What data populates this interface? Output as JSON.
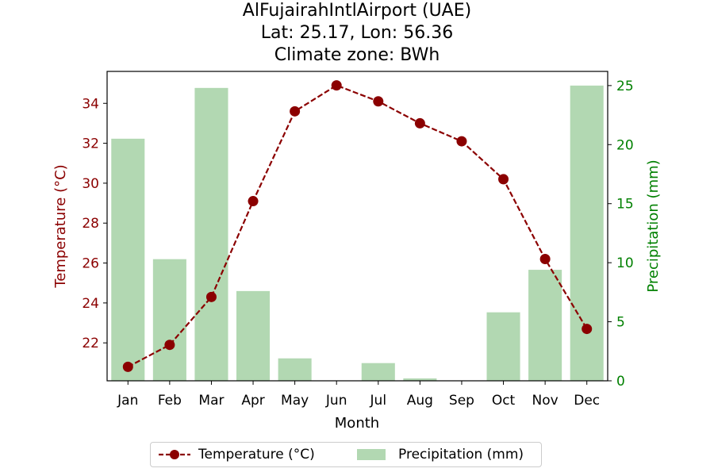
{
  "chart_data": {
    "type": "bar+line",
    "title_lines": [
      "AlFujairahIntlAirport (UAE)",
      "Lat: 25.17, Lon: 56.36",
      "Climate zone: BWh"
    ],
    "xlabel": "Month",
    "categories": [
      "Jan",
      "Feb",
      "Mar",
      "Apr",
      "May",
      "Jun",
      "Jul",
      "Aug",
      "Sep",
      "Oct",
      "Nov",
      "Dec"
    ],
    "left_axis": {
      "label": "Temperature (°C)",
      "ylim": [
        20.1,
        35.6
      ],
      "ticks": [
        22,
        24,
        26,
        28,
        30,
        32,
        34
      ],
      "color": "#8b0000"
    },
    "right_axis": {
      "label": "Precipitation (mm)",
      "ylim": [
        0,
        26.2
      ],
      "ticks": [
        0,
        5,
        10,
        15,
        20,
        25
      ],
      "color": "#008000"
    },
    "series": [
      {
        "name": "Temperature (°C)",
        "kind": "line",
        "axis": "left",
        "color": "#8b0000",
        "values": [
          20.8,
          21.9,
          24.3,
          29.1,
          33.6,
          34.9,
          34.1,
          33.0,
          32.1,
          30.2,
          26.2,
          22.7
        ]
      },
      {
        "name": "Precipitation (mm)",
        "kind": "bar",
        "axis": "right",
        "color": "#b2d8b2",
        "values": [
          20.5,
          10.3,
          24.8,
          7.6,
          1.9,
          0.0,
          1.5,
          0.2,
          0.0,
          5.8,
          9.4,
          25.0
        ]
      }
    ],
    "grid": false,
    "legend": "bottom-center"
  }
}
